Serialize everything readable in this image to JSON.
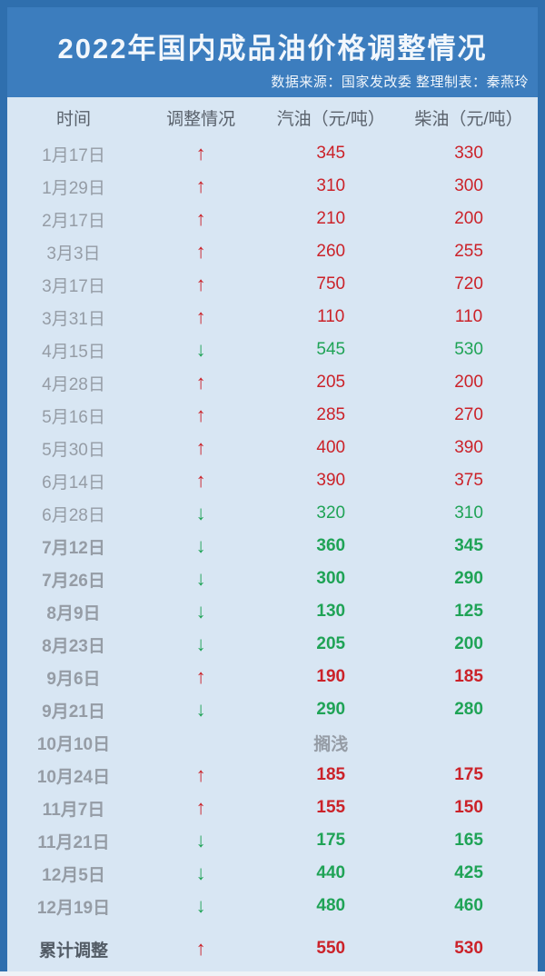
{
  "title": "2022年国内成品油价格调整情况",
  "source_line": "数据来源：国家发改委 整理制表：秦燕玲",
  "columns": [
    "时间",
    "调整情况",
    "汽油（元/吨）",
    "柴油（元/吨）"
  ],
  "icons": {
    "up_arrow": "↑",
    "down_arrow": "↓"
  },
  "colors": {
    "border_blue": "#2f6fae",
    "title_band_blue": "#3c7dbe",
    "table_background": "#d8e6f3",
    "increase_red": "#cb2229",
    "decrease_green": "#1fa356",
    "date_gray": "#959ca5",
    "header_gray": "#5a626c"
  },
  "chart_data": {
    "type": "table",
    "title": "2022年国内成品油价格调整情况",
    "source": "数据来源：国家发改委 整理制表：秦燕玲",
    "columns": [
      "时间",
      "调整情况",
      "汽油（元/吨）",
      "柴油（元/吨）"
    ],
    "rows": [
      {
        "date": "1月17日",
        "direction": "up",
        "gasoline": "345",
        "diesel": "330",
        "bold": false,
        "is_total": false
      },
      {
        "date": "1月29日",
        "direction": "up",
        "gasoline": "310",
        "diesel": "300",
        "bold": false,
        "is_total": false
      },
      {
        "date": "2月17日",
        "direction": "up",
        "gasoline": "210",
        "diesel": "200",
        "bold": false,
        "is_total": false
      },
      {
        "date": "3月3日",
        "direction": "up",
        "gasoline": "260",
        "diesel": "255",
        "bold": false,
        "is_total": false
      },
      {
        "date": "3月17日",
        "direction": "up",
        "gasoline": "750",
        "diesel": "720",
        "bold": false,
        "is_total": false
      },
      {
        "date": "3月31日",
        "direction": "up",
        "gasoline": "110",
        "diesel": "110",
        "bold": false,
        "is_total": false
      },
      {
        "date": "4月15日",
        "direction": "down",
        "gasoline": "545",
        "diesel": "530",
        "bold": false,
        "is_total": false
      },
      {
        "date": "4月28日",
        "direction": "up",
        "gasoline": "205",
        "diesel": "200",
        "bold": false,
        "is_total": false
      },
      {
        "date": "5月16日",
        "direction": "up",
        "gasoline": "285",
        "diesel": "270",
        "bold": false,
        "is_total": false
      },
      {
        "date": "5月30日",
        "direction": "up",
        "gasoline": "400",
        "diesel": "390",
        "bold": false,
        "is_total": false
      },
      {
        "date": "6月14日",
        "direction": "up",
        "gasoline": "390",
        "diesel": "375",
        "bold": false,
        "is_total": false
      },
      {
        "date": "6月28日",
        "direction": "down",
        "gasoline": "320",
        "diesel": "310",
        "bold": false,
        "is_total": false
      },
      {
        "date": "7月12日",
        "direction": "down",
        "gasoline": "360",
        "diesel": "345",
        "bold": true,
        "is_total": false
      },
      {
        "date": "7月26日",
        "direction": "down",
        "gasoline": "300",
        "diesel": "290",
        "bold": true,
        "is_total": false
      },
      {
        "date": "8月9日",
        "direction": "down",
        "gasoline": "130",
        "diesel": "125",
        "bold": true,
        "is_total": false
      },
      {
        "date": "8月23日",
        "direction": "down",
        "gasoline": "205",
        "diesel": "200",
        "bold": true,
        "is_total": false
      },
      {
        "date": "9月6日",
        "direction": "up",
        "gasoline": "190",
        "diesel": "185",
        "bold": true,
        "is_total": false
      },
      {
        "date": "9月21日",
        "direction": "down",
        "gasoline": "290",
        "diesel": "280",
        "bold": true,
        "is_total": false
      },
      {
        "date": "10月10日",
        "direction": "none",
        "gasoline": "搁浅",
        "diesel": "",
        "bold": true,
        "is_total": false
      },
      {
        "date": "10月24日",
        "direction": "up",
        "gasoline": "185",
        "diesel": "175",
        "bold": true,
        "is_total": false
      },
      {
        "date": "11月7日",
        "direction": "up",
        "gasoline": "155",
        "diesel": "150",
        "bold": true,
        "is_total": false
      },
      {
        "date": "11月21日",
        "direction": "down",
        "gasoline": "175",
        "diesel": "165",
        "bold": true,
        "is_total": false
      },
      {
        "date": "12月5日",
        "direction": "down",
        "gasoline": "440",
        "diesel": "425",
        "bold": true,
        "is_total": false
      },
      {
        "date": "12月19日",
        "direction": "down",
        "gasoline": "480",
        "diesel": "460",
        "bold": true,
        "is_total": false
      },
      {
        "date": "累计调整",
        "direction": "up",
        "gasoline": "550",
        "diesel": "530",
        "bold": true,
        "is_total": true
      }
    ]
  }
}
